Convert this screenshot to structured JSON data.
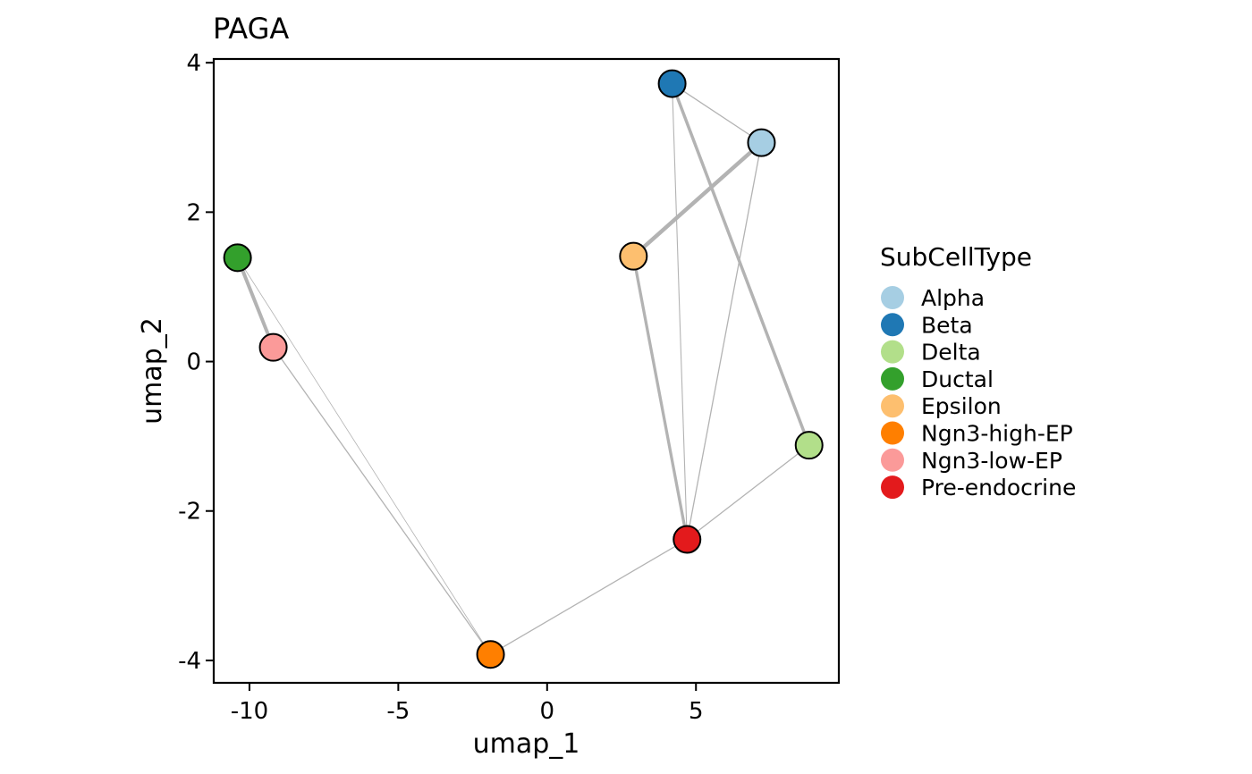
{
  "chart_data": {
    "type": "scatter",
    "title": "PAGA",
    "xlabel": "umap_1",
    "ylabel": "umap_2",
    "xlim": [
      -11.2,
      9.8
    ],
    "ylim": [
      -4.3,
      4.05
    ],
    "xticks": [
      -10,
      -5,
      0,
      5
    ],
    "yticks": [
      -4,
      -2,
      0,
      2,
      4
    ],
    "grid": false,
    "legend": {
      "title": "SubCellType",
      "placement": "right",
      "entries": [
        "Alpha",
        "Beta",
        "Delta",
        "Ductal",
        "Epsilon",
        "Ngn3-high-EP",
        "Ngn3-low-EP",
        "Pre-endocrine"
      ]
    },
    "nodes": [
      {
        "name": "Alpha",
        "x": 7.2,
        "y": 2.93,
        "color": "#A6CEE3"
      },
      {
        "name": "Beta",
        "x": 4.2,
        "y": 3.72,
        "color": "#1F78B4"
      },
      {
        "name": "Delta",
        "x": 8.8,
        "y": -1.12,
        "color": "#B2DF8A"
      },
      {
        "name": "Ductal",
        "x": -10.4,
        "y": 1.39,
        "color": "#33A02C"
      },
      {
        "name": "Epsilon",
        "x": 2.9,
        "y": 1.41,
        "color": "#FDBF6F"
      },
      {
        "name": "Ngn3-high-EP",
        "x": -1.9,
        "y": -3.92,
        "color": "#FF7F00"
      },
      {
        "name": "Ngn3-low-EP",
        "x": -9.2,
        "y": 0.19,
        "color": "#FB9A99"
      },
      {
        "name": "Pre-endocrine",
        "x": 4.7,
        "y": -2.38,
        "color": "#E31A1C"
      }
    ],
    "edges": [
      {
        "from": "Beta",
        "to": "Alpha",
        "weight": 1.3
      },
      {
        "from": "Beta",
        "to": "Delta",
        "weight": 3.5
      },
      {
        "from": "Beta",
        "to": "Pre-endocrine",
        "weight": 1.1
      },
      {
        "from": "Alpha",
        "to": "Epsilon",
        "weight": 4.5
      },
      {
        "from": "Alpha",
        "to": "Pre-endocrine",
        "weight": 1.3
      },
      {
        "from": "Epsilon",
        "to": "Pre-endocrine",
        "weight": 3.3
      },
      {
        "from": "Delta",
        "to": "Pre-endocrine",
        "weight": 1.3
      },
      {
        "from": "Pre-endocrine",
        "to": "Ngn3-high-EP",
        "weight": 1.3
      },
      {
        "from": "Ductal",
        "to": "Ngn3-low-EP",
        "weight": 4.0
      },
      {
        "from": "Ductal",
        "to": "Ngn3-high-EP",
        "weight": 0.8
      },
      {
        "from": "Ngn3-low-EP",
        "to": "Ngn3-high-EP",
        "weight": 1.3
      }
    ],
    "edge_color": "#B3B3B3"
  }
}
